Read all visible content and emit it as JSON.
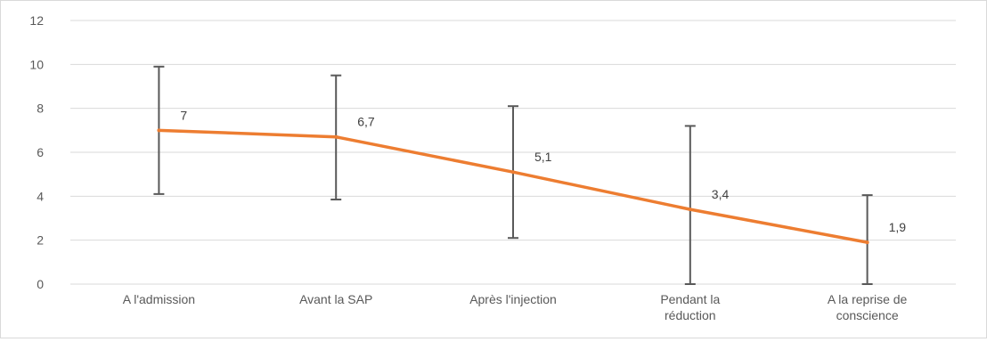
{
  "chart_data": {
    "type": "line",
    "title": "",
    "xlabel": "",
    "ylabel": "",
    "categories": [
      [
        "A l'admission"
      ],
      [
        "Avant la SAP"
      ],
      [
        "Après l'injection"
      ],
      [
        "Pendant la",
        "réduction"
      ],
      [
        "A la reprise de",
        "conscience"
      ]
    ],
    "series": [
      {
        "values": [
          7,
          6.7,
          5.1,
          3.4,
          1.9
        ],
        "data_labels": [
          "7",
          "6,7",
          "5,1",
          "3,4",
          "1,9"
        ],
        "error_high": [
          9.9,
          9.5,
          8.1,
          7.2,
          4.05
        ],
        "error_low": [
          4.1,
          3.85,
          2.1,
          0,
          0
        ],
        "color": "#ED7D31"
      }
    ],
    "ylim": [
      0,
      12
    ],
    "yticks": [
      0,
      2,
      4,
      6,
      8,
      10,
      12
    ],
    "grid": true,
    "legend": "none",
    "colors": {
      "grid": "#d9d9d9",
      "error_bar": "#595959",
      "text": "#595959"
    }
  }
}
